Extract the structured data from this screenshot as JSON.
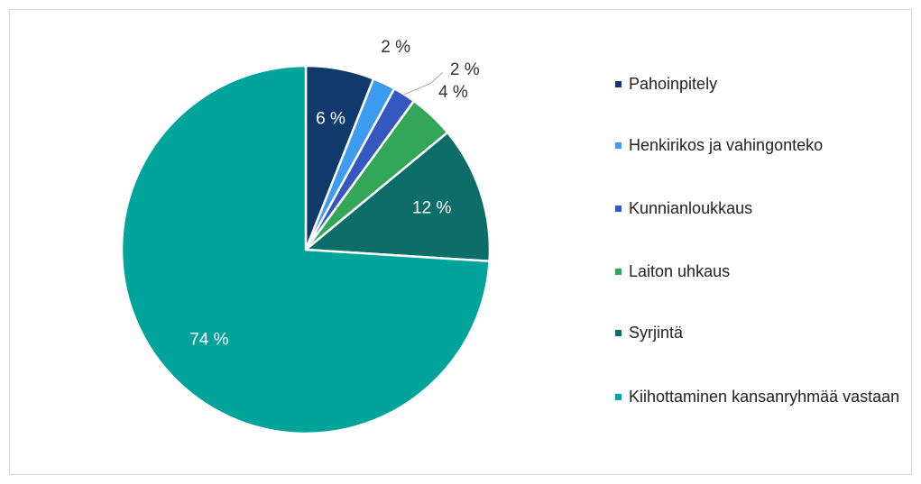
{
  "chart_data": {
    "type": "pie",
    "categories": [
      "Pahoinpitely",
      "Henkirikos ja vahingonteko",
      "Kunnianloukkaus",
      "Laiton uhkaus",
      "Syrjintä",
      "Kiihottaminen kansanryhmää vastaan"
    ],
    "values": [
      6,
      2,
      2,
      4,
      12,
      74
    ],
    "value_labels": [
      "6 %",
      "2 %",
      "2 %",
      "4 %",
      "12 %",
      "74 %"
    ],
    "colors": [
      "#0f3a6b",
      "#3d9bf0",
      "#3558c0",
      "#34a65a",
      "#0d6e69",
      "#00a49b"
    ]
  }
}
